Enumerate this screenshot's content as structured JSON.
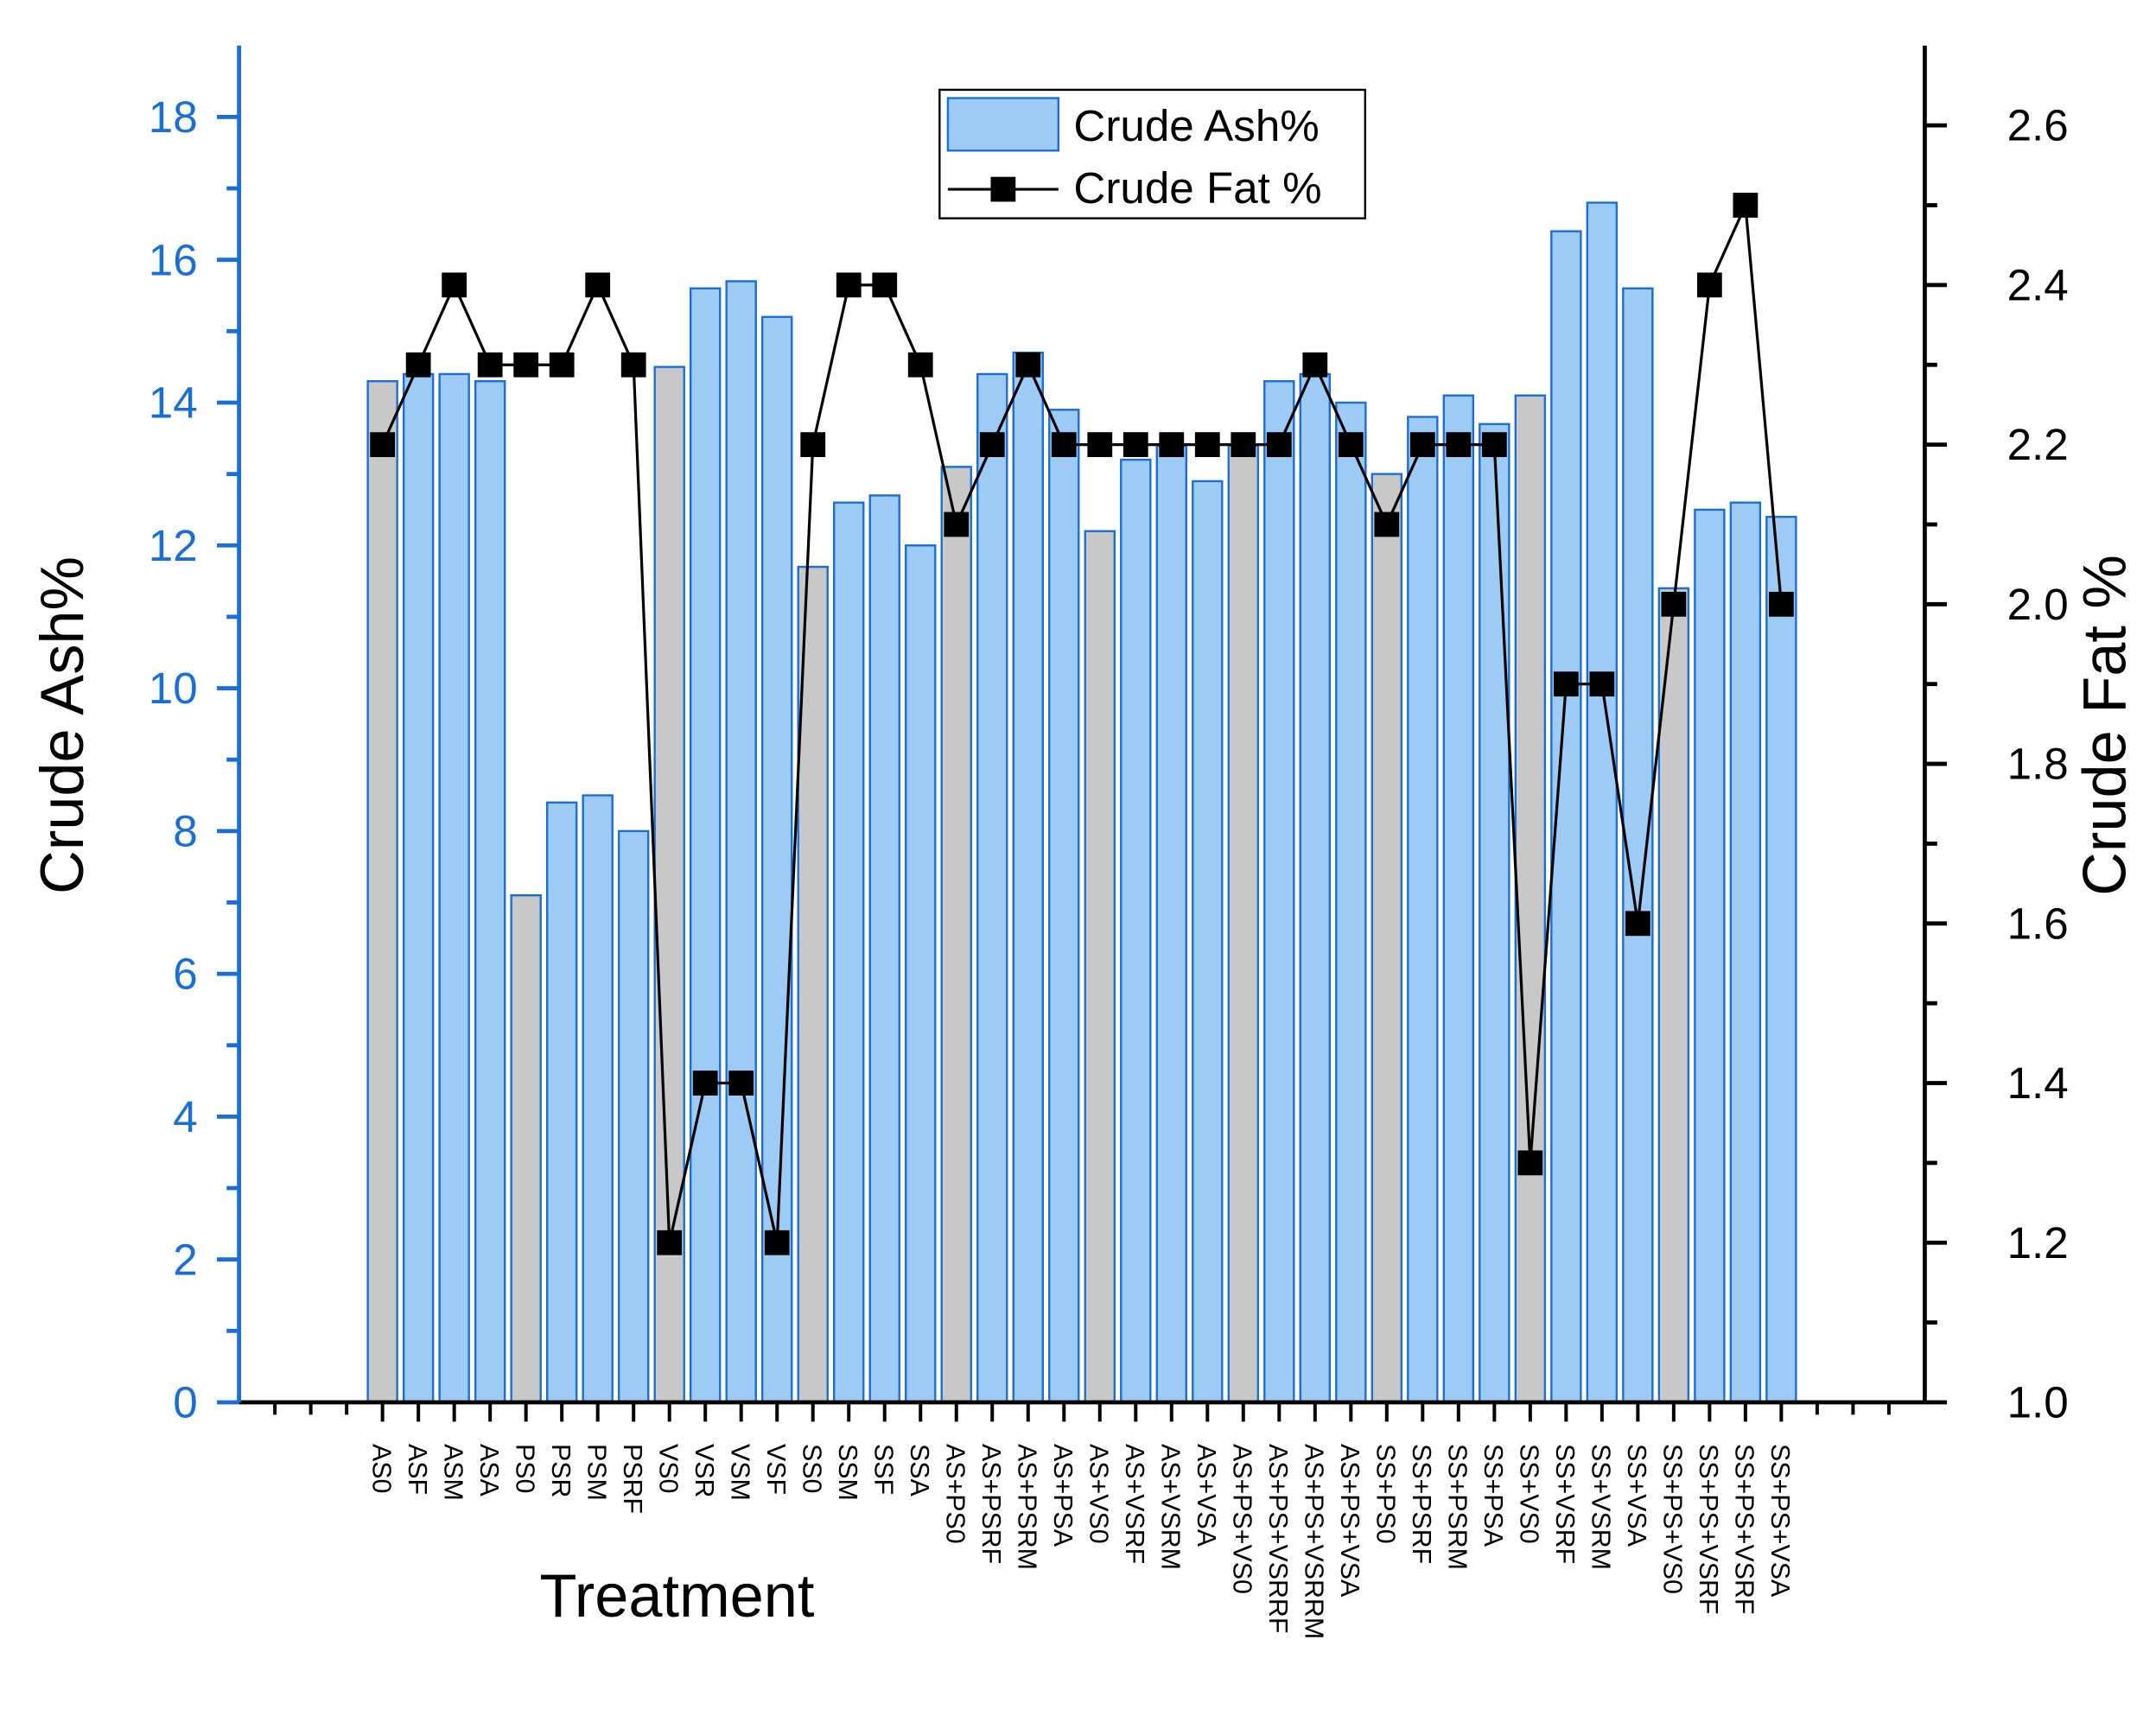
{
  "chart_data": {
    "type": "bar",
    "x_label": "Treatment",
    "y_label": "Crude Ash%",
    "y2_label": "Crude Fat %",
    "categories": [
      "AS0",
      "ASF",
      "ASM",
      "ASA",
      "PS0",
      "PSR",
      "PSM",
      "PSRF",
      "VS0",
      "VSR",
      "VSM",
      "VSF",
      "SS0",
      "SSM",
      "SSF",
      "SSA",
      "AS+PS0",
      "AS+PSRF",
      "AS+PSRM",
      "AS+PSA",
      "AS+VS0",
      "AS+VSRF",
      "AS+VSRM",
      "AS+VSA",
      "AS+PS+VS0",
      "AS+PS+VSRRF",
      "AS+PS+VSRRM",
      "AS+PS+VSA",
      "SS+PS0",
      "SS+PSRF",
      "SS+PSRM",
      "SS+PSA",
      "SS+VS0",
      "SS+VSRF",
      "SS+VSRM",
      "SS+VSA",
      "SS+PS+VS0",
      "SS+PS+VSRF",
      "SS+PS+VSRF",
      "SS+PS+VSA"
    ],
    "series": [
      {
        "name": "Crude Ash%",
        "type": "bar",
        "color": "#9ecbf5",
        "edge_color": "#1a6fd6",
        "colors": [
          "#c8c8c8",
          "#9ecbf5",
          "#9ecbf5",
          "#9ecbf5",
          "#c8c8c8",
          "#9ecbf5",
          "#9ecbf5",
          "#9ecbf5",
          "#c8c8c8",
          "#9ecbf5",
          "#9ecbf5",
          "#9ecbf5",
          "#c8c8c8",
          "#9ecbf5",
          "#9ecbf5",
          "#9ecbf5",
          "#c8c8c8",
          "#9ecbf5",
          "#9ecbf5",
          "#9ecbf5",
          "#c8c8c8",
          "#9ecbf5",
          "#9ecbf5",
          "#9ecbf5",
          "#c8c8c8",
          "#9ecbf5",
          "#9ecbf5",
          "#9ecbf5",
          "#c8c8c8",
          "#9ecbf5",
          "#9ecbf5",
          "#9ecbf5",
          "#c8c8c8",
          "#9ecbf5",
          "#9ecbf5",
          "#9ecbf5",
          "#c8c8c8",
          "#9ecbf5",
          "#9ecbf5",
          "#9ecbf5"
        ],
        "values": [
          14.3,
          14.4,
          14.4,
          14.3,
          7.1,
          8.4,
          8.5,
          8.0,
          14.5,
          15.6,
          15.7,
          15.2,
          11.7,
          12.6,
          12.7,
          12.0,
          13.1,
          14.4,
          14.7,
          13.9,
          12.2,
          13.2,
          13.4,
          12.9,
          13.4,
          14.3,
          14.4,
          14.0,
          13.0,
          13.8,
          14.1,
          13.7,
          14.1,
          16.4,
          16.8,
          15.6,
          11.4,
          12.5,
          12.6,
          12.4
        ]
      },
      {
        "name": "Crude Fat %",
        "type": "line",
        "axis": "y2",
        "color": "#000000",
        "values": [
          2.2,
          2.3,
          2.4,
          2.3,
          2.3,
          2.3,
          2.4,
          2.3,
          1.2,
          1.4,
          1.4,
          1.2,
          2.2,
          2.4,
          2.4,
          2.3,
          2.1,
          2.2,
          2.3,
          2.2,
          2.2,
          2.2,
          2.2,
          2.2,
          2.2,
          2.2,
          2.3,
          2.2,
          2.1,
          2.2,
          2.2,
          2.2,
          1.3,
          1.9,
          1.9,
          1.6,
          2.0,
          2.4,
          2.5,
          2.0
        ]
      }
    ],
    "ylim": [
      0,
      19
    ],
    "yticks": [
      0,
      2,
      4,
      6,
      8,
      10,
      12,
      14,
      16,
      18
    ],
    "y_axis_color": "#1a6fd6",
    "y2lim": [
      1,
      2.7
    ],
    "y2ticks": [
      {
        "value": 1,
        "label": "1.0"
      },
      1.2,
      1.4,
      1.6,
      1.8,
      {
        "value": 2,
        "label": "2.0"
      },
      2.2,
      2.4,
      2.6
    ],
    "legend": "top-center"
  }
}
